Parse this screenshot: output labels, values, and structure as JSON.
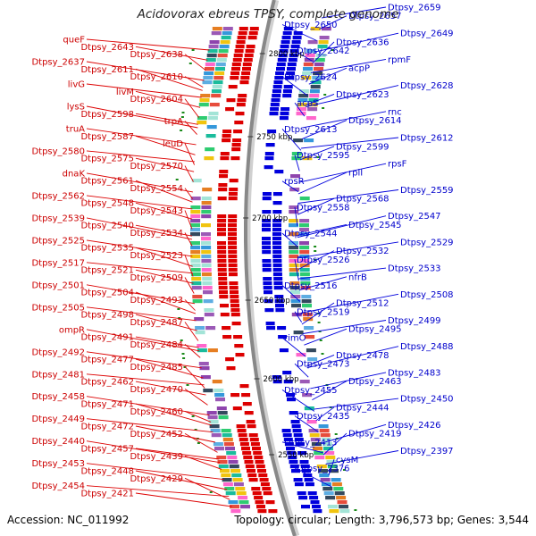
{
  "title": "Acidovorax ebreus TPSY, complete genome",
  "footer": {
    "accession": "Accession: NC_011992",
    "summary": "Topology: circular; Length: 3,796,573 bp; Genes: 3,544"
  },
  "colors": {
    "forward": "#dd0000",
    "reverse": "#0000dd",
    "backbone": "#888888"
  },
  "scale_labels": [
    "2800 kbp",
    "2750 kbp",
    "2700 kbp",
    "2650 kbp",
    "2600 kbp",
    "2550 kbp"
  ],
  "left_labels": [
    "queF",
    "Dtpsy_2643",
    "Dtpsy_2638",
    "Dtpsy_2637",
    "Dtpsy_2611",
    "Dtpsy_2610",
    "livG",
    "livM",
    "Dtpsy_2604",
    "lysS",
    "Dtpsy_2598",
    "trpA",
    "truA",
    "Dtpsy_2587",
    "leuD",
    "Dtpsy_2580",
    "Dtpsy_2575",
    "Dtpsy_2570",
    "dnaK",
    "Dtpsy_2561",
    "Dtpsy_2554",
    "Dtpsy_2562",
    "Dtpsy_2548",
    "Dtpsy_2543",
    "Dtpsy_2539",
    "Dtpsy_2540",
    "Dtpsy_2534",
    "Dtpsy_2525",
    "Dtpsy_2535",
    "Dtpsy_2523",
    "Dtpsy_2517",
    "Dtpsy_2521",
    "Dtpsy_2509",
    "Dtpsy_2501",
    "Dtpsy_2504",
    "Dtpsy_2493",
    "Dtpsy_2505",
    "Dtpsy_2498",
    "Dtpsy_2487",
    "ompR",
    "Dtpsy_2491",
    "Dtpsy_2484",
    "Dtpsy_2492",
    "Dtpsy_2477",
    "Dtpsy_2485",
    "Dtpsy_2481",
    "Dtpsy_2462",
    "Dtpsy_2470",
    "Dtpsy_2458",
    "Dtpsy_2471",
    "Dtpsy_2460",
    "Dtpsy_2449",
    "Dtpsy_2472",
    "Dtpsy_2452",
    "Dtpsy_2440",
    "Dtpsy_2457",
    "Dtpsy_2439",
    "Dtpsy_2453",
    "Dtpsy_2448",
    "Dtpsy_2429",
    "Dtpsy_2454",
    "Dtpsy_2421"
  ],
  "right_labels": [
    "Dtpsy_2659",
    "Dtpsy_2657",
    "Dtpsy_2650",
    "Dtpsy_2649",
    "Dtpsy_2636",
    "Dtpsy_2642",
    "rpmF",
    "acpP",
    "Dtpsy_2624",
    "Dtpsy_2628",
    "Dtpsy_2623",
    "acpS",
    "rnc",
    "Dtpsy_2614",
    "Dtpsy_2613",
    "Dtpsy_2612",
    "Dtpsy_2599",
    "Dtpsy_2595",
    "rpsF",
    "rplI",
    "rpsR",
    "Dtpsy_2559",
    "Dtpsy_2568",
    "Dtpsy_2558",
    "Dtpsy_2547",
    "Dtpsy_2545",
    "Dtpsy_2544",
    "Dtpsy_2529",
    "Dtpsy_2532",
    "Dtpsy_2526",
    "Dtpsy_2533",
    "nfrB",
    "Dtpsy_2516",
    "Dtpsy_2508",
    "Dtpsy_2512",
    "Dtpsy_2519",
    "Dtpsy_2499",
    "Dtpsy_2495",
    "rimO",
    "Dtpsy_2488",
    "Dtpsy_2478",
    "Dtpsy_2473",
    "Dtpsy_2483",
    "Dtpsy_2463",
    "Dtpsy_2455",
    "Dtpsy_2450",
    "Dtpsy_2444",
    "Dtpsy_2435",
    "Dtpsy_2426",
    "Dtpsy_2419",
    "Dtpsy_2413",
    "Dtpsy_2397",
    "cysM",
    "Dtpsy_2376"
  ]
}
